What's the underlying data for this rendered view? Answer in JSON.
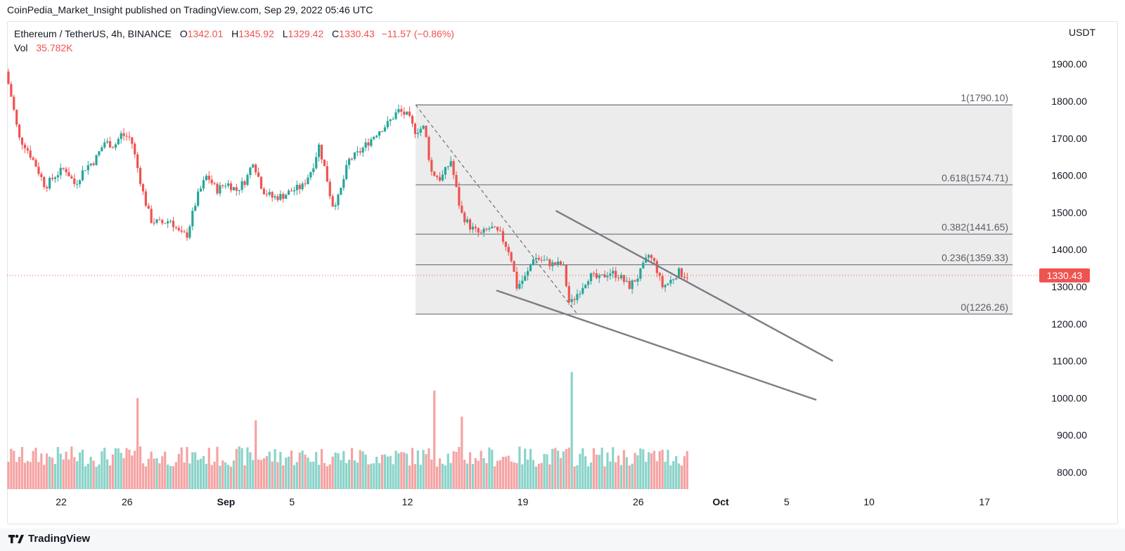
{
  "header": {
    "publish_text": "CoinPedia_Market_Insight published on TradingView.com, Sep 29, 2022 05:46 UTC"
  },
  "legend": {
    "symbol": "Ethereum / TetherUS, 4h, BINANCE",
    "o_label": "O",
    "o_value": "1342.01",
    "h_label": "H",
    "h_value": "1345.92",
    "l_label": "L",
    "l_value": "1329.42",
    "c_label": "C",
    "c_value": "1330.43",
    "change": "−11.57 (−0.86%)",
    "vol_label": "Vol",
    "vol_value": "35.782K"
  },
  "currency": "USDT",
  "footer": {
    "brand": "TradingView"
  },
  "colors": {
    "up": "#26a69a",
    "down": "#ef5350",
    "vol_up": "#8ad3c9",
    "vol_down": "#f5a3a3",
    "fib_band": "#ececec",
    "fib_line": "#6f6f77",
    "trend_line": "#7c7c86",
    "price_tag": "#ef5350"
  },
  "chart_data": {
    "type": "candlestick",
    "timeframe": "4h",
    "ylim": [
      750,
      1950
    ],
    "y_ticks": [
      "1900.00",
      "1800.00",
      "1700.00",
      "1600.00",
      "1500.00",
      "1400.00",
      "1300.00",
      "1200.00",
      "1100.00",
      "1000.00",
      "900.00",
      "800.00"
    ],
    "x_ticks": [
      {
        "label": "22",
        "day": 22
      },
      {
        "label": "26",
        "day": 26
      },
      {
        "label": "Sep",
        "day": 32
      },
      {
        "label": "5",
        "day": 36
      },
      {
        "label": "12",
        "day": 43
      },
      {
        "label": "19",
        "day": 50
      },
      {
        "label": "26",
        "day": 57
      },
      {
        "label": "Oct",
        "day": 62
      },
      {
        "label": "5",
        "day": 66
      },
      {
        "label": "10",
        "day": 71
      },
      {
        "label": "17",
        "day": 78
      }
    ],
    "price_path": [
      [
        18.8,
        1880
      ],
      [
        19.2,
        1800
      ],
      [
        19.6,
        1700
      ],
      [
        20.0,
        1680
      ],
      [
        20.6,
        1630
      ],
      [
        21.2,
        1570
      ],
      [
        21.8,
        1600
      ],
      [
        22.4,
        1620
      ],
      [
        23.0,
        1575
      ],
      [
        23.6,
        1620
      ],
      [
        24.2,
        1640
      ],
      [
        24.8,
        1690
      ],
      [
        25.4,
        1680
      ],
      [
        25.8,
        1710
      ],
      [
        26.4,
        1700
      ],
      [
        26.8,
        1620
      ],
      [
        27.2,
        1540
      ],
      [
        27.6,
        1480
      ],
      [
        28.2,
        1470
      ],
      [
        28.8,
        1480
      ],
      [
        29.4,
        1440
      ],
      [
        29.8,
        1440
      ],
      [
        30.4,
        1540
      ],
      [
        31.0,
        1600
      ],
      [
        31.6,
        1560
      ],
      [
        32.2,
        1580
      ],
      [
        32.8,
        1560
      ],
      [
        33.4,
        1590
      ],
      [
        33.8,
        1640
      ],
      [
        34.4,
        1560
      ],
      [
        35.0,
        1540
      ],
      [
        35.6,
        1545
      ],
      [
        36.2,
        1560
      ],
      [
        36.8,
        1570
      ],
      [
        37.4,
        1620
      ],
      [
        37.8,
        1680
      ],
      [
        38.2,
        1610
      ],
      [
        38.6,
        1520
      ],
      [
        39.0,
        1540
      ],
      [
        39.6,
        1640
      ],
      [
        40.2,
        1660
      ],
      [
        40.8,
        1690
      ],
      [
        41.4,
        1720
      ],
      [
        42.0,
        1740
      ],
      [
        42.6,
        1775
      ],
      [
        43.2,
        1760
      ],
      [
        43.6,
        1720
      ],
      [
        44.2,
        1730
      ],
      [
        44.6,
        1610
      ],
      [
        45.2,
        1590
      ],
      [
        45.8,
        1640
      ],
      [
        46.4,
        1500
      ],
      [
        47.0,
        1460
      ],
      [
        47.6,
        1440
      ],
      [
        48.2,
        1460
      ],
      [
        48.8,
        1440
      ],
      [
        49.4,
        1390
      ],
      [
        49.8,
        1300
      ],
      [
        50.4,
        1330
      ],
      [
        50.8,
        1380
      ],
      [
        51.4,
        1370
      ],
      [
        52.0,
        1360
      ],
      [
        52.6,
        1360
      ],
      [
        53.0,
        1250
      ],
      [
        53.6,
        1290
      ],
      [
        54.2,
        1330
      ],
      [
        54.8,
        1320
      ],
      [
        55.4,
        1340
      ],
      [
        56.0,
        1330
      ],
      [
        56.6,
        1300
      ],
      [
        57.2,
        1330
      ],
      [
        57.8,
        1385
      ],
      [
        58.2,
        1360
      ],
      [
        58.6,
        1300
      ],
      [
        59.0,
        1310
      ],
      [
        59.6,
        1340
      ],
      [
        60.0,
        1330.43
      ]
    ],
    "volume_spikes": [
      {
        "day": 26.7,
        "vol": 1000
      },
      {
        "day": 44.7,
        "vol": 1020
      },
      {
        "day": 53.0,
        "vol": 1070
      },
      {
        "day": 46.3,
        "vol": 950
      },
      {
        "day": 33.8,
        "vol": 940
      }
    ],
    "last_price": "1330.43",
    "fibonacci": [
      {
        "label": "1(1790.10)",
        "price": 1790.1
      },
      {
        "label": "0.618(1574.71)",
        "price": 1574.71
      },
      {
        "label": "0.382(1441.65)",
        "price": 1441.65
      },
      {
        "label": "0.236(1359.33)",
        "price": 1359.33
      },
      {
        "label": "0(1226.26)",
        "price": 1226.26
      }
    ],
    "fib_range_days": [
      43.5,
      79.7
    ],
    "trend_lines": [
      {
        "name": "falling wedge upper",
        "from": [
          52.0,
          1505
        ],
        "to": [
          68.8,
          1100
        ]
      },
      {
        "name": "falling wedge lower",
        "from": [
          48.4,
          1290
        ],
        "to": [
          67.8,
          995
        ]
      },
      {
        "name": "fib anchor dashed",
        "from": [
          43.5,
          1790.1
        ],
        "to": [
          53.3,
          1226.26
        ],
        "dashed": true
      }
    ]
  }
}
